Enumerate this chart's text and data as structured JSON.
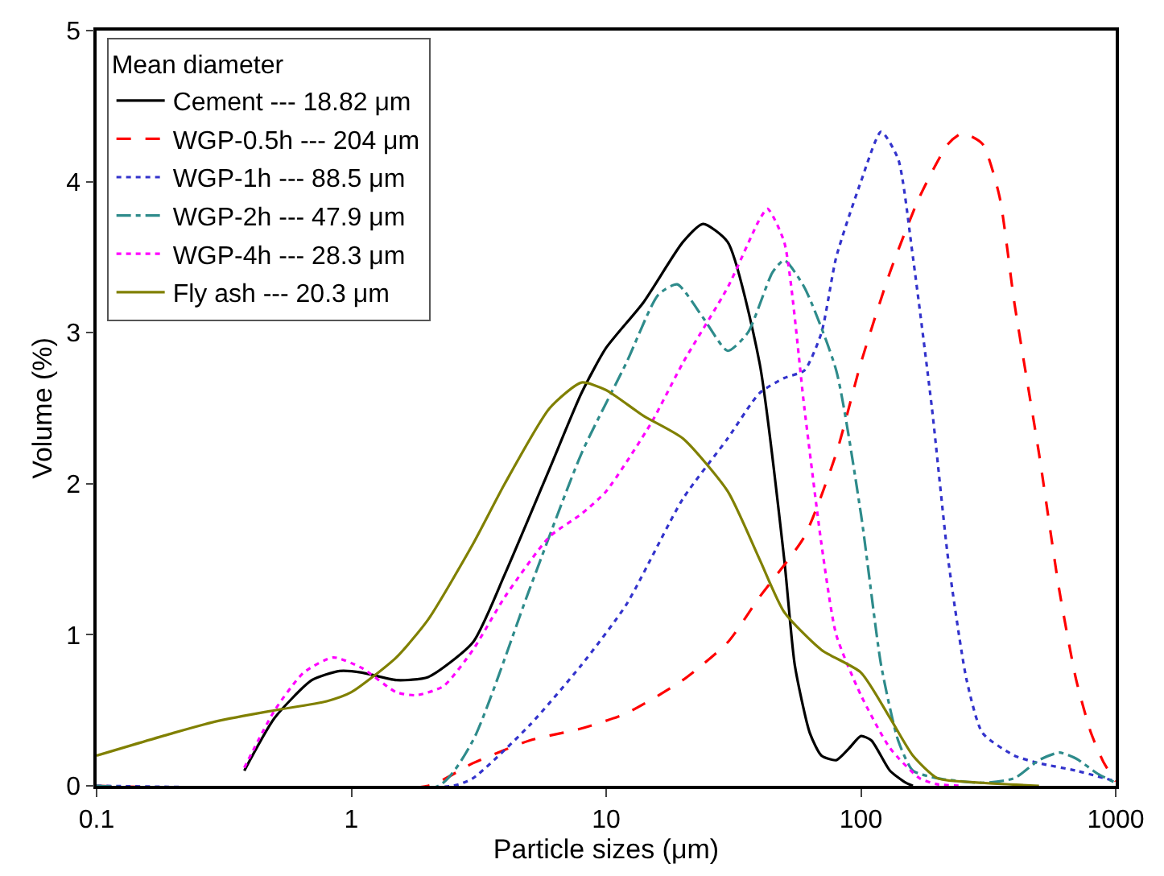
{
  "chart_data": {
    "type": "line",
    "xlabel": "Particle sizes (μm)",
    "ylabel": "Volume (%)",
    "legend_title": "Mean diameter",
    "legend": "top left",
    "log": "x",
    "xlim": [
      0.1,
      1000
    ],
    "xticks": [
      0.1,
      1,
      10,
      100,
      1000
    ],
    "ylim": [
      0,
      5
    ],
    "yticks": [
      0,
      1,
      2,
      3,
      4,
      5
    ],
    "series": [
      {
        "name": "Cement --- 18.82 μm",
        "color": "#000000",
        "line_style": "solid",
        "x": [
          0.38,
          0.5,
          0.7,
          0.9,
          1.1,
          1.5,
          2,
          3,
          4,
          6,
          8,
          10,
          14,
          20,
          24,
          30,
          40,
          50,
          55,
          63,
          70,
          80,
          90,
          100,
          110,
          130,
          150,
          160
        ],
        "values": [
          0.1,
          0.45,
          0.7,
          0.76,
          0.75,
          0.7,
          0.72,
          0.95,
          1.4,
          2.1,
          2.6,
          2.9,
          3.2,
          3.6,
          3.72,
          3.6,
          2.8,
          1.5,
          0.8,
          0.35,
          0.2,
          0.17,
          0.25,
          0.33,
          0.3,
          0.1,
          0.02,
          0
        ]
      },
      {
        "name": "WGP-0.5h --- 204 μm",
        "color": "#ff0000",
        "line_style": "dashed",
        "x": [
          0.1,
          2,
          3,
          5,
          8,
          12,
          20,
          30,
          40,
          60,
          80,
          100,
          130,
          170,
          220,
          250,
          300,
          350,
          400,
          500,
          600,
          700,
          800,
          900,
          1000
        ],
        "values": [
          0,
          0,
          0.15,
          0.3,
          0.38,
          0.48,
          0.7,
          0.95,
          1.25,
          1.65,
          2.2,
          2.8,
          3.4,
          3.9,
          4.25,
          4.32,
          4.25,
          3.9,
          3.2,
          2.2,
          1.3,
          0.7,
          0.35,
          0.15,
          0.03
        ]
      },
      {
        "name": "WGP-1h --- 88.5 μm",
        "color": "#3333cc",
        "line_style": "dotted",
        "x": [
          0.1,
          2.5,
          3,
          5,
          8,
          12,
          20,
          30,
          40,
          50,
          60,
          70,
          80,
          100,
          120,
          140,
          160,
          190,
          220,
          260,
          300,
          400,
          500,
          700,
          1000
        ],
        "values": [
          0,
          0,
          0.05,
          0.4,
          0.8,
          1.2,
          1.9,
          2.3,
          2.6,
          2.7,
          2.75,
          3.0,
          3.5,
          4.0,
          4.33,
          4.15,
          3.5,
          2.5,
          1.5,
          0.7,
          0.35,
          0.2,
          0.15,
          0.1,
          0.03
        ]
      },
      {
        "name": "WGP-2h --- 47.9 μm",
        "color": "#2e8b8b",
        "line_style": "dashdot",
        "x": [
          0.1,
          2.2,
          3,
          5,
          8,
          12,
          16,
          19,
          24,
          30,
          36,
          45,
          50,
          60,
          80,
          100,
          120,
          140,
          160,
          200,
          300,
          400,
          500,
          600,
          700,
          850,
          1000
        ],
        "values": [
          0,
          0,
          0.3,
          1.3,
          2.2,
          2.8,
          3.25,
          3.32,
          3.1,
          2.88,
          3.0,
          3.4,
          3.48,
          3.3,
          2.75,
          1.8,
          0.8,
          0.3,
          0.1,
          0.05,
          0.02,
          0.05,
          0.17,
          0.22,
          0.18,
          0.08,
          0.02
        ]
      },
      {
        "name": "WGP-4h --- 28.3 μm",
        "color": "#ff00ff",
        "line_style": "dotted",
        "x": [
          0.38,
          0.5,
          0.65,
          0.85,
          1.1,
          1.5,
          1.8,
          2.3,
          3,
          4,
          6,
          8,
          10,
          15,
          20,
          30,
          40,
          43,
          50,
          60,
          70,
          80,
          100,
          130,
          170,
          200,
          250
        ],
        "values": [
          0.12,
          0.5,
          0.75,
          0.85,
          0.78,
          0.62,
          0.6,
          0.66,
          0.9,
          1.25,
          1.65,
          1.8,
          1.95,
          2.4,
          2.8,
          3.3,
          3.75,
          3.82,
          3.6,
          2.5,
          1.6,
          1.0,
          0.6,
          0.25,
          0.05,
          0.01,
          0
        ]
      },
      {
        "name": "Fly ash --- 20.3 μm",
        "color": "#808000",
        "line_style": "solid",
        "x": [
          0.1,
          0.2,
          0.3,
          0.5,
          0.8,
          1,
          1.5,
          2,
          3,
          4,
          6,
          8,
          10,
          14,
          20,
          30,
          40,
          50,
          70,
          100,
          130,
          160,
          200,
          300,
          500
        ],
        "values": [
          0.2,
          0.35,
          0.43,
          0.5,
          0.56,
          0.62,
          0.85,
          1.1,
          1.6,
          2.0,
          2.5,
          2.67,
          2.62,
          2.45,
          2.3,
          1.95,
          1.5,
          1.15,
          0.9,
          0.75,
          0.45,
          0.2,
          0.05,
          0.02,
          0
        ]
      }
    ]
  }
}
